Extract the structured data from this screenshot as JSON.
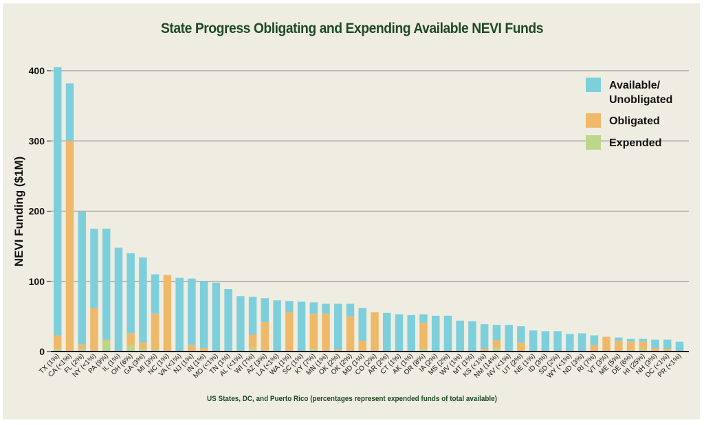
{
  "chart_data": {
    "type": "bar",
    "stacked": true,
    "title": "State Progress Obligating and Expending Available NEVI Funds",
    "xlabel": "US States, DC, and Puerto Rico (percentages represent expended funds of total available)",
    "ylabel": "NEVI Funding ($1M)",
    "ylim": [
      0,
      400
    ],
    "yticks": [
      0,
      100,
      200,
      300,
      400
    ],
    "grid": true,
    "legend_position": "top-right",
    "colors": {
      "available": "#7ecfdc",
      "obligated": "#efb96a",
      "expended": "#bcd68a",
      "gridline": "#999999",
      "axis": "#111111",
      "title": "#1f4a26",
      "background": "#efede1"
    },
    "legend": [
      {
        "key": "available",
        "label_line1": "Available/",
        "label_line2": "Unobligated"
      },
      {
        "key": "obligated",
        "label_line1": "Obligated",
        "label_line2": ""
      },
      {
        "key": "expended",
        "label_line1": "Expended",
        "label_line2": ""
      }
    ],
    "categories": [
      "TX (1%)",
      "CA (<1%)",
      "FL (2%)",
      "NY (<1%)",
      "PA (9%)",
      "IL (1%)",
      "OH (6%)",
      "GA (3%)",
      "MI (3%)",
      "NC (1%)",
      "VA (<1%)",
      "NJ (1%)",
      "IN (1%)",
      "MO (<1%)",
      "TN (1%)",
      "AL (<1%)",
      "WI (7%)",
      "AZ (3%)",
      "LA (<1%)",
      "WA (1%)",
      "SC (1%)",
      "KY (7%)",
      "MN (1%)",
      "OK (2%)",
      "OK (2%)",
      "MD (1%)",
      "CO (2%)",
      "AR (2%)",
      "CT (1%)",
      "AK (1%)",
      "OR (8%)",
      "IA (2%)",
      "MS (2%)",
      "WV (1%)",
      "MT (1%)",
      "KS (<1%)",
      "NM (14%)",
      "NV (<1%)",
      "UT (2%)",
      "NE (1%)",
      "ID (3%)",
      "SD (2%)",
      "WY (<1%)",
      "ND (3%)",
      "RI (7%)",
      "VT (3%)",
      "ME (5%)",
      "DE (6%)",
      "HI (25%)",
      "NH (3%)",
      "DC (<1%)",
      "PR (<1%)"
    ],
    "series": [
      {
        "name": "Expended",
        "key": "expended",
        "values": [
          4,
          1,
          4,
          1,
          15,
          1,
          8,
          4,
          3,
          1,
          0,
          1,
          1,
          0,
          1,
          0,
          5,
          2,
          0,
          1,
          1,
          4,
          1,
          1,
          1,
          1,
          1,
          1,
          0,
          1,
          4,
          1,
          1,
          0,
          0,
          0,
          5,
          0,
          1,
          0,
          1,
          1,
          0,
          1,
          1,
          1,
          1,
          1,
          4,
          1,
          0,
          0
        ]
      },
      {
        "name": "Obligated",
        "key": "obligated",
        "values": [
          19,
          299,
          6,
          61,
          2,
          0,
          18,
          9,
          51,
          108,
          0,
          8,
          4,
          0,
          0,
          0,
          19,
          40,
          0,
          55,
          0,
          50,
          53,
          2,
          49,
          14,
          55,
          0,
          0,
          0,
          37,
          0,
          0,
          0,
          0,
          4,
          11,
          0,
          12,
          0,
          0,
          0,
          0,
          0,
          8,
          20,
          14,
          13,
          10,
          4,
          4,
          0
        ]
      },
      {
        "name": "Available/Unobligated",
        "key": "available",
        "values": [
          382,
          82,
          189,
          113,
          158,
          147,
          114,
          121,
          56,
          0,
          105,
          95,
          95,
          98,
          88,
          79,
          54,
          34,
          73,
          16,
          70,
          16,
          14,
          65,
          18,
          47,
          0,
          54,
          53,
          51,
          12,
          50,
          50,
          44,
          43,
          35,
          22,
          38,
          23,
          30,
          28,
          28,
          25,
          25,
          14,
          0,
          5,
          4,
          4,
          12,
          13,
          14
        ]
      }
    ]
  }
}
